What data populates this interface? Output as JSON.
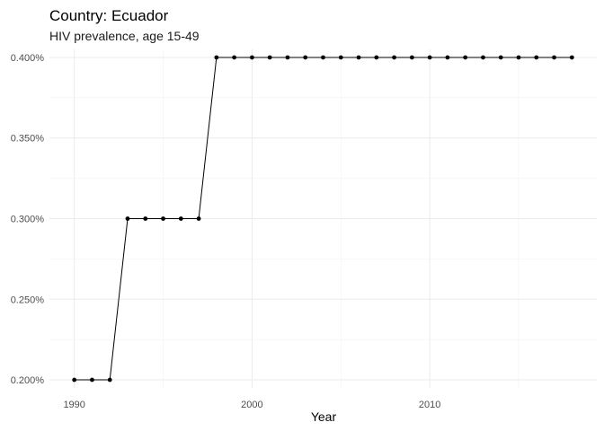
{
  "chart_data": {
    "type": "line",
    "title": "Country: Ecuador",
    "subtitle": "HIV prevalence, age 15-49",
    "xlabel": "Year",
    "ylabel": "",
    "x": [
      1990,
      1991,
      1992,
      1993,
      1994,
      1995,
      1996,
      1997,
      1998,
      1999,
      2000,
      2001,
      2002,
      2003,
      2004,
      2005,
      2006,
      2007,
      2008,
      2009,
      2010,
      2011,
      2012,
      2013,
      2014,
      2015,
      2016,
      2017,
      2018
    ],
    "series": [
      {
        "values": [
          0.2,
          0.2,
          0.2,
          0.3,
          0.3,
          0.3,
          0.3,
          0.3,
          0.4,
          0.4,
          0.4,
          0.4,
          0.4,
          0.4,
          0.4,
          0.4,
          0.4,
          0.4,
          0.4,
          0.4,
          0.4,
          0.4,
          0.4,
          0.4,
          0.4,
          0.4,
          0.4,
          0.4,
          0.4
        ]
      }
    ],
    "xlim": [
      1988.6,
      2019.4
    ],
    "ylim": [
      0.195,
      0.405
    ],
    "x_ticks": [
      1990,
      2000,
      2010
    ],
    "x_tick_labels": [
      "1990",
      "2000",
      "2010"
    ],
    "y_ticks": [
      0.2,
      0.25,
      0.3,
      0.35,
      0.4
    ],
    "y_tick_labels": [
      "0.200%",
      "0.250%",
      "0.300%",
      "0.350%",
      "0.400%"
    ],
    "grid": true,
    "legend": "none",
    "colors": {
      "line": "#000000",
      "points": "#000000",
      "grid": "#ebebeb"
    }
  }
}
